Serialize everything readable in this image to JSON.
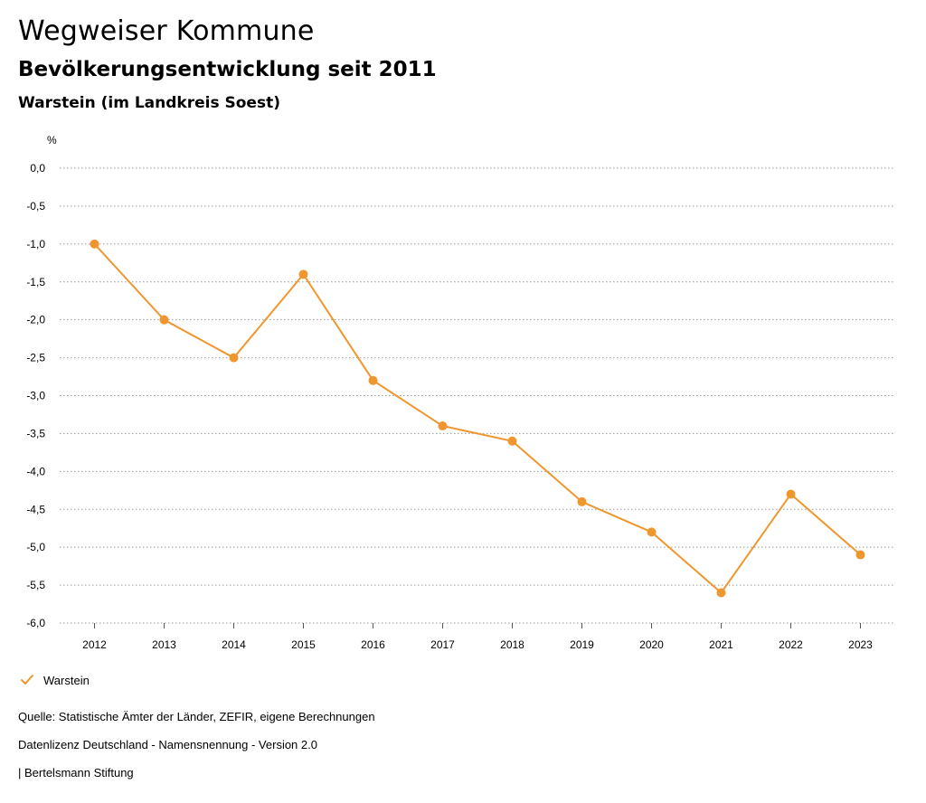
{
  "header": {
    "title": "Wegweiser Kommune",
    "subtitle": "Bevölkerungsentwicklung seit 2011",
    "region": "Warstein (im Landkreis Soest)"
  },
  "chart_data": {
    "type": "line",
    "ylabel": "%",
    "xlabel": "",
    "ylim": [
      -6.0,
      0.0
    ],
    "y_ticks": [
      "0,0",
      "-0,5",
      "-1,0",
      "-1,5",
      "-2,0",
      "-2,5",
      "-3,0",
      "-3,5",
      "-4,0",
      "-4,5",
      "-5,0",
      "-5,5",
      "-6,0"
    ],
    "y_tick_values": [
      0.0,
      -0.5,
      -1.0,
      -1.5,
      -2.0,
      -2.5,
      -3.0,
      -3.5,
      -4.0,
      -4.5,
      -5.0,
      -5.5,
      -6.0
    ],
    "categories": [
      "2012",
      "2013",
      "2014",
      "2015",
      "2016",
      "2017",
      "2018",
      "2019",
      "2020",
      "2021",
      "2022",
      "2023"
    ],
    "series": [
      {
        "name": "Warstein",
        "color": "#f0962e",
        "values": [
          -1.0,
          -2.0,
          -2.5,
          -1.4,
          -2.8,
          -3.4,
          -3.6,
          -4.4,
          -4.8,
          -5.6,
          -4.3,
          -5.1
        ]
      }
    ],
    "grid": true,
    "legend": "bottom-left"
  },
  "legend": {
    "label": "Warstein"
  },
  "footer": {
    "source": "Quelle: Statistische Ämter der Länder, ZEFIR, eigene Berechnungen",
    "license": "Datenlizenz Deutschland - Namensnennung - Version 2.0",
    "brand": "| Bertelsmann Stiftung"
  }
}
